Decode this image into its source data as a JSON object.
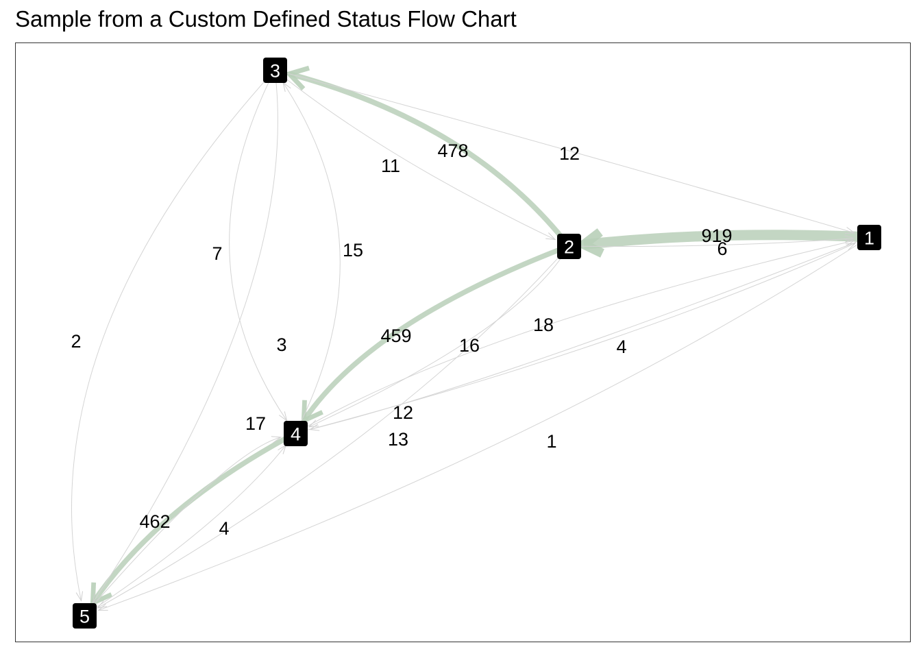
{
  "title": "Sample from a Custom Defined Status Flow Chart",
  "nodes": [
    {
      "id": "1",
      "label": "1"
    },
    {
      "id": "2",
      "label": "2"
    },
    {
      "id": "3",
      "label": "3"
    },
    {
      "id": "4",
      "label": "4"
    },
    {
      "id": "5",
      "label": "5"
    }
  ],
  "edges": [
    {
      "from": "1",
      "to": "2",
      "value": 919,
      "label": "919"
    },
    {
      "from": "2",
      "to": "1",
      "value": 6,
      "label": "6"
    },
    {
      "from": "2",
      "to": "3",
      "value": 478,
      "label": "478"
    },
    {
      "from": "3",
      "to": "2",
      "value": 11,
      "label": "11"
    },
    {
      "from": "3",
      "to": "1",
      "value": 12,
      "label": "12"
    },
    {
      "from": "2",
      "to": "4",
      "value": 459,
      "label": "459"
    },
    {
      "from": "4",
      "to": "1",
      "value": 16,
      "label": "16"
    },
    {
      "from": "2",
      "to": "4",
      "value": 18,
      "label": "18"
    },
    {
      "from": "4",
      "to": "1",
      "value": 4,
      "label": "4"
    },
    {
      "from": "1",
      "to": "4",
      "value": 12,
      "label": "12"
    },
    {
      "from": "2",
      "to": "5",
      "value": 13,
      "label": "13"
    },
    {
      "from": "1",
      "to": "5",
      "value": 1,
      "label": "1"
    },
    {
      "from": "4",
      "to": "5",
      "value": 462,
      "label": "462"
    },
    {
      "from": "5",
      "to": "4",
      "value": 4,
      "label": "4"
    },
    {
      "from": "3",
      "to": "4",
      "value": 7,
      "label": "7"
    },
    {
      "from": "4",
      "to": "3",
      "value": 15,
      "label": "15"
    },
    {
      "from": "3",
      "to": "5",
      "value": 3,
      "label": "3"
    },
    {
      "from": "3",
      "to": "5",
      "value": 2,
      "label": "2"
    },
    {
      "from": "5",
      "to": "4",
      "value": 17,
      "label": "17"
    }
  ],
  "colors": {
    "node_fill": "#000000",
    "node_text": "#ffffff",
    "major_edge": "#b8cfb8",
    "minor_edge": "#d4d4d4",
    "frame": "#333333"
  }
}
